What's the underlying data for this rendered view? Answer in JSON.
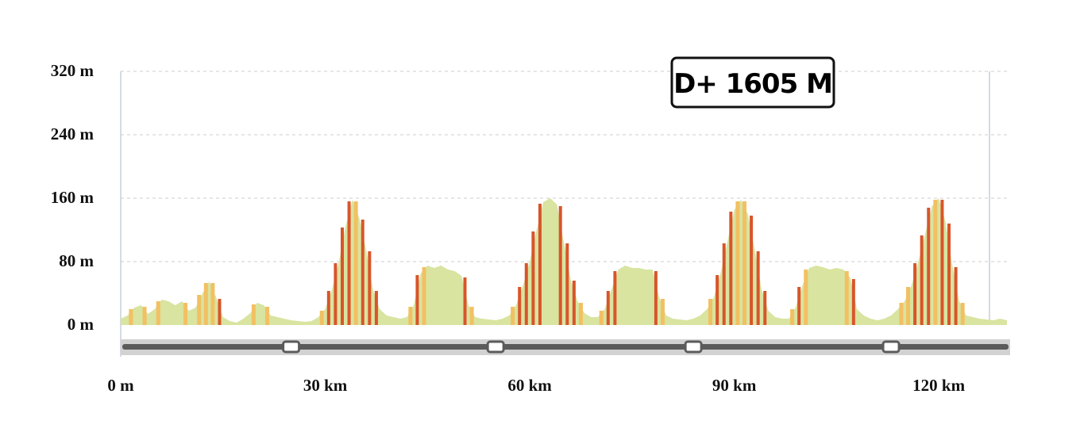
{
  "chart_data": {
    "type": "area",
    "title": "",
    "xlabel": "",
    "ylabel": "",
    "x_unit": "km",
    "y_unit": "m",
    "xlim": [
      0,
      130
    ],
    "ylim": [
      0,
      320
    ],
    "grid": true,
    "x_ticks": [
      {
        "value": 0,
        "label": "0 m"
      },
      {
        "value": 30,
        "label": "30 km"
      },
      {
        "value": 60,
        "label": "60 km"
      },
      {
        "value": 90,
        "label": "90 km"
      },
      {
        "value": 120,
        "label": "120 km"
      }
    ],
    "y_ticks": [
      {
        "value": 0,
        "label": "0 m"
      },
      {
        "value": 80,
        "label": "80 m"
      },
      {
        "value": 160,
        "label": "160 m"
      },
      {
        "value": 240,
        "label": "240 m"
      },
      {
        "value": 320,
        "label": "320 m"
      }
    ],
    "badge": {
      "label": "D+ 1605 M"
    },
    "series": [
      {
        "x": [
          0,
          1,
          2,
          3,
          4,
          5,
          6,
          7,
          8,
          9,
          10,
          11,
          12,
          13,
          14,
          15,
          16,
          17,
          18,
          19,
          20,
          21,
          22,
          23,
          24,
          25,
          26,
          27,
          28,
          29,
          30,
          31,
          32,
          33,
          34,
          35,
          36,
          37,
          38,
          39,
          40,
          41,
          42,
          43,
          44,
          45,
          46,
          47,
          48,
          49,
          50,
          51,
          52,
          53,
          54,
          55,
          56,
          57,
          58,
          59,
          60,
          61,
          62,
          63,
          64,
          65,
          66,
          67,
          68,
          69,
          70,
          71,
          72,
          73,
          74,
          75,
          76,
          77,
          78,
          79,
          80,
          81,
          82,
          83,
          84,
          85,
          86,
          87,
          88,
          89,
          90,
          91,
          92,
          93,
          94,
          95,
          96,
          97,
          98,
          99,
          100,
          101,
          102,
          103,
          104,
          105,
          106,
          107,
          108,
          109,
          110,
          111,
          112,
          113,
          114,
          115,
          116,
          117,
          118,
          119,
          120,
          121,
          122,
          123,
          124,
          125,
          126,
          127,
          128,
          129,
          130
        ],
        "values": [
          8,
          12,
          22,
          25,
          14,
          20,
          32,
          30,
          25,
          30,
          18,
          22,
          40,
          55,
          35,
          10,
          5,
          3,
          8,
          15,
          28,
          25,
          12,
          10,
          8,
          6,
          5,
          4,
          5,
          10,
          20,
          45,
          80,
          125,
          158,
          135,
          95,
          45,
          20,
          12,
          10,
          8,
          10,
          25,
          65,
          75,
          72,
          75,
          70,
          68,
          62,
          25,
          10,
          8,
          7,
          6,
          8,
          12,
          25,
          50,
          80,
          120,
          155,
          160,
          152,
          105,
          58,
          30,
          15,
          10,
          10,
          20,
          45,
          70,
          75,
          72,
          72,
          70,
          70,
          35,
          12,
          8,
          7,
          6,
          8,
          12,
          20,
          35,
          65,
          105,
          145,
          158,
          140,
          95,
          45,
          18,
          10,
          8,
          8,
          22,
          50,
          72,
          75,
          73,
          70,
          72,
          70,
          60,
          20,
          12,
          8,
          6,
          8,
          12,
          20,
          30,
          50,
          80,
          115,
          150,
          160,
          130,
          75,
          30,
          12,
          10,
          8,
          7,
          6,
          8,
          6
        ]
      }
    ],
    "colors": {
      "profile_fill": "#d8e4a0",
      "moderate_grade": "#f2c063",
      "steep_grade": "#d9552a",
      "grid": "#e6e6e6",
      "axis_line": "#c9cdda",
      "track": "#5b5b5b",
      "track_bg": "#d2d2d2"
    }
  }
}
